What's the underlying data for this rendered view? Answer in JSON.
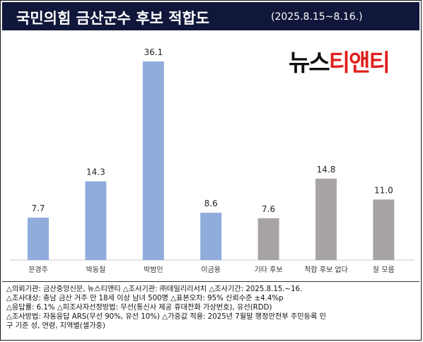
{
  "header": {
    "title": "국민의힘 금산군수 후보 적합도",
    "subtitle": "(2025.8.15~8.16.)"
  },
  "logo": {
    "part1": "뉴스",
    "part2": "티앤티"
  },
  "colors": {
    "title_bg": "#10173a",
    "candidate_bar": "#8facdc",
    "other_bar": "#a8a4a4",
    "logo_red": "#e0201b"
  },
  "chart_data": {
    "type": "bar",
    "categories": [
      "문경주",
      "박동철",
      "박범인",
      "이금용",
      "기타 후보",
      "적합 후보 없다",
      "잘 모름"
    ],
    "values": [
      7.7,
      14.3,
      36.1,
      8.6,
      7.6,
      14.8,
      11.0
    ],
    "value_labels": [
      "7.7",
      "14.3",
      "36.1",
      "8.6",
      "7.6",
      "14.8",
      "11.0"
    ],
    "bar_colors": [
      "#8facdc",
      "#8facdc",
      "#8facdc",
      "#8facdc",
      "#a8a4a4",
      "#a8a4a4",
      "#a8a4a4"
    ],
    "title": "",
    "xlabel": "",
    "ylabel": "",
    "ylim": [
      0,
      36.1
    ],
    "grid": false,
    "legend": "none"
  },
  "notes": [
    "△의뢰기관: 금산중앙신문, 뉴스티앤티 △조사기관: ㈜데일리리서치 △조사기간: 2025.8.15.~16.",
    "△조사대상: 충남 금산 거주 만 18세 이상 남녀 500명 △표본오차: 95% 신뢰수준 ±4.4%p",
    "△응답률: 6.1% △피조사자선정방법: 무선(통신사 제공 휴대전화 가상번호), 유선(RDD)",
    "△조사방법: 자동응답 ARS(무선 90%, 유선 10%) △가중값 적용: 2025년 7월말 행정안전부 주민등록 인",
    "구 기준 성, 연령, 지역별(셀가중)"
  ]
}
